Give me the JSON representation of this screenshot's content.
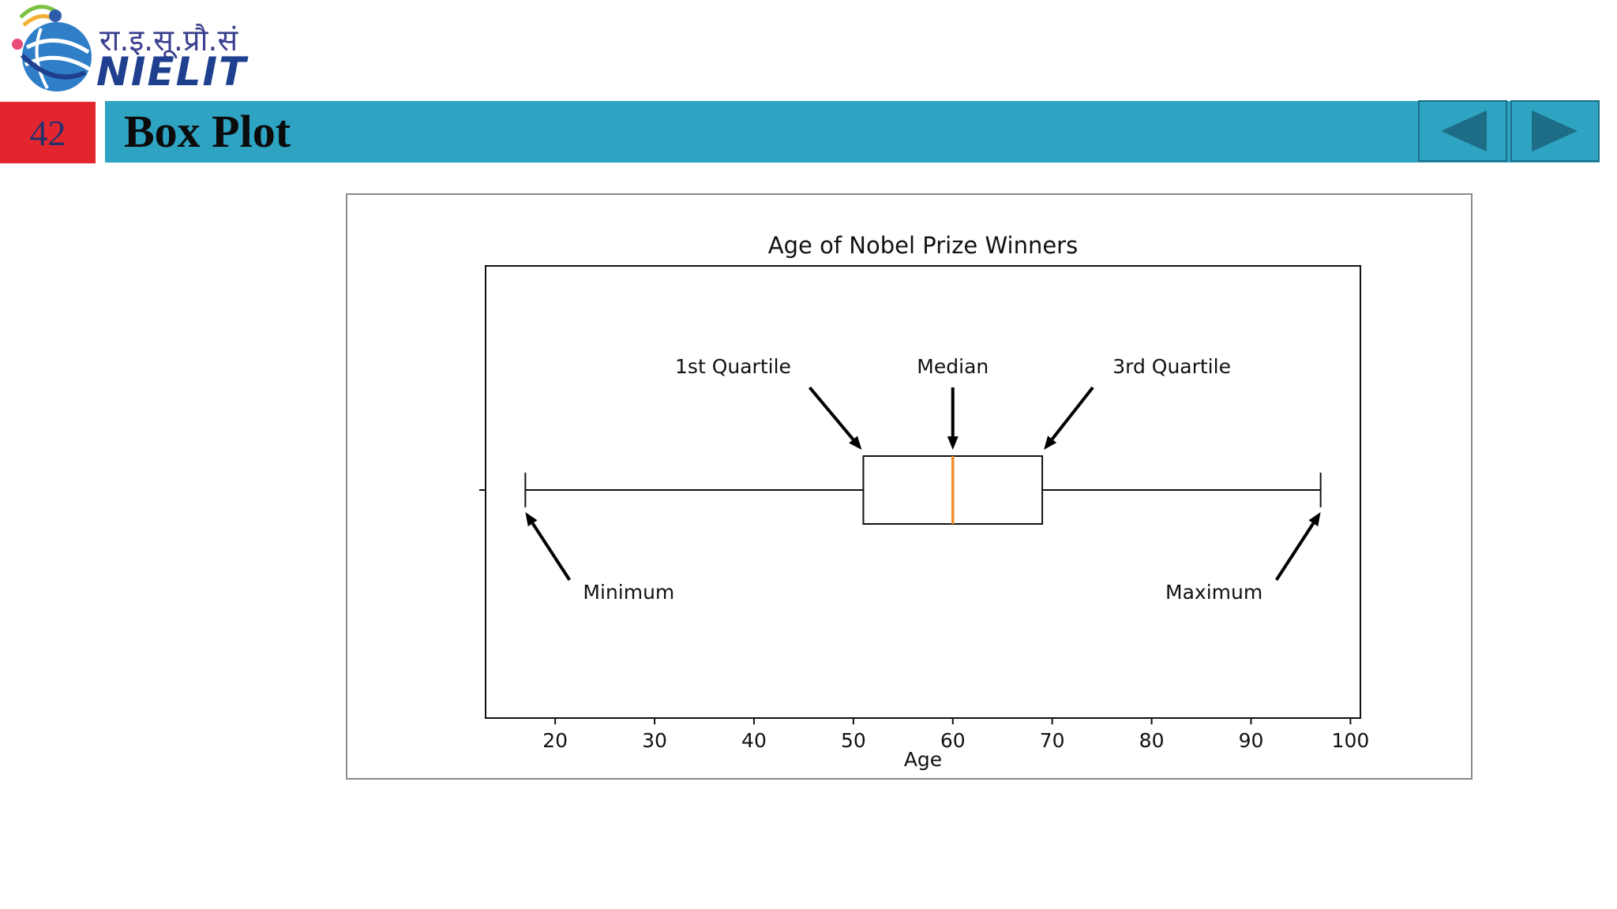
{
  "header": {
    "logo_hindi": "रा.इ.सू.प्रौ.सं",
    "logo_brand": "NIELIT",
    "slide_number": "42",
    "title": "Box Plot",
    "prev_icon": "triangle-left-icon",
    "next_icon": "triangle-right-icon"
  },
  "colors": {
    "title_bar": "#2ea3c2",
    "slide_number_bg": "#e3262d",
    "median_line": "#f28e2b"
  },
  "chart_data": {
    "type": "box",
    "title": "Age of Nobel Prize Winners",
    "xlabel": "Age",
    "ylabel": "",
    "xlim": [
      13,
      101
    ],
    "xticks": [
      20,
      30,
      40,
      50,
      60,
      70,
      80,
      90,
      100
    ],
    "orientation": "horizontal",
    "box": {
      "min": 17,
      "q1": 51,
      "median": 60,
      "q3": 69,
      "max": 97
    },
    "annotations": [
      {
        "text": "Minimum",
        "target": 17
      },
      {
        "text": "1st Quartile",
        "target": 51
      },
      {
        "text": "Median",
        "target": 60
      },
      {
        "text": "3rd Quartile",
        "target": 69
      },
      {
        "text": "Maximum",
        "target": 97
      }
    ]
  }
}
